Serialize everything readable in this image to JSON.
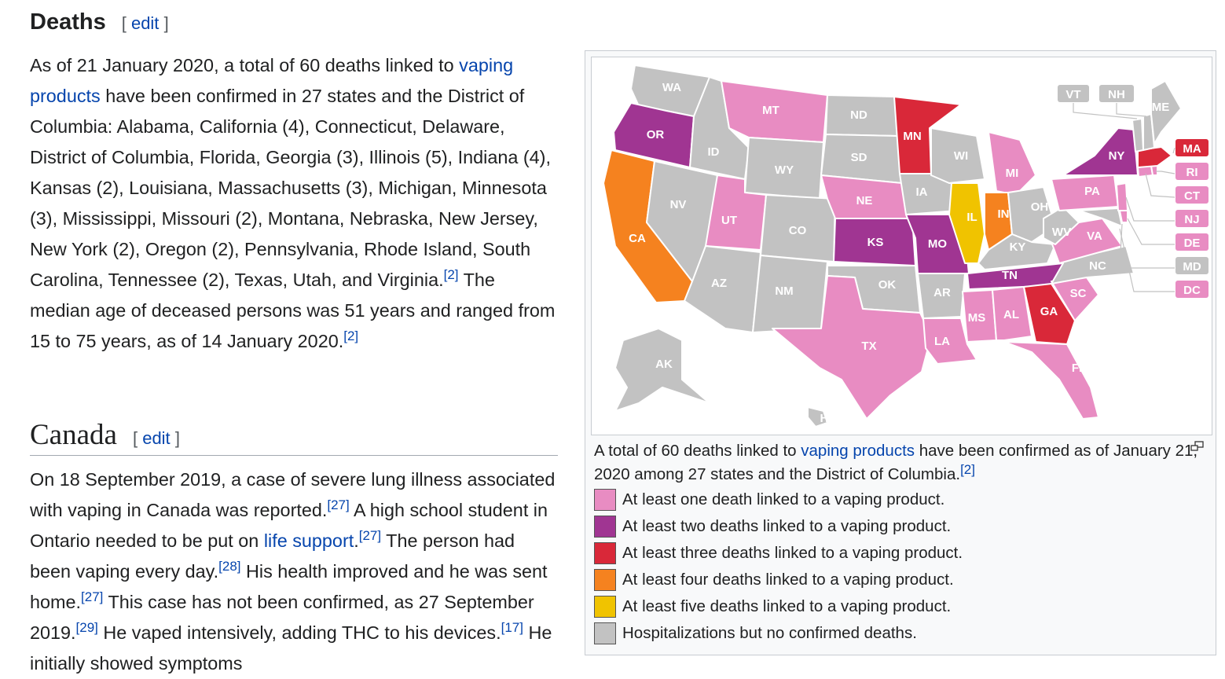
{
  "deaths_section": {
    "heading": "Deaths",
    "edit_bracket_open": "[",
    "edit_label": "edit",
    "edit_bracket_close": "]",
    "para_pre": "As of 21 January 2020, a total of 60 deaths linked to ",
    "para_link": "vaping products",
    "para_mid": " have been confirmed in 27 states and the District of Columbia: Alabama, California (4), Connecticut, Delaware, District of Columbia, Florida, Georgia (3), Illinois (5), Indiana (4), Kansas (2), Louisiana, Massachusetts (3), Michigan, Minnesota (3), Mississippi, Missouri (2), Montana, Nebraska, New Jersey, New York (2), Oregon (2), Pennsylvania, Rhode Island, South Carolina, Tennessee (2), Texas, Utah, and Virginia.",
    "ref1": "[2]",
    "para_post": " The median age of deceased persons was 51 years and ranged from 15 to 75 years, as of 14 January 2020.",
    "ref2": "[2]"
  },
  "canada_section": {
    "heading": "Canada",
    "edit_bracket_open": "[",
    "edit_label": "edit",
    "edit_bracket_close": "]",
    "t1": "On 18 September 2019, a case of severe lung illness associated with vaping in Canada was reported.",
    "r1": "[27]",
    "t2": " A high school student in Ontario needed to be put on ",
    "link": "life support",
    "t3": ".",
    "r2": "[27]",
    "t4": " The person had been vaping every day.",
    "r3": "[28]",
    "t5": " His health improved and he was sent home.",
    "r4": "[27]",
    "t6": " This case has not been confirmed, as 27 September 2019.",
    "r5": "[29]",
    "t7": " He vaped intensively, adding THC to his devices.",
    "r6": "[17]",
    "t8": " He initially showed symptoms"
  },
  "figure": {
    "caption_pre": "A total of 60 deaths linked to ",
    "caption_link": "vaping products",
    "caption_post": " have been confirmed as of January 21, 2020 among 27 states and the District of Columbia.",
    "caption_ref": "[2]",
    "legend": [
      {
        "color": "#e88cc2",
        "label": "At least one death linked to a vaping product."
      },
      {
        "color": "#a03592",
        "label": "At least two deaths linked to a vaping product."
      },
      {
        "color": "#d92839",
        "label": "At least three deaths linked to a vaping product."
      },
      {
        "color": "#f5821f",
        "label": "At least four deaths linked to a vaping product."
      },
      {
        "color": "#f0c300",
        "label": "At least five deaths linked to a vaping product."
      },
      {
        "color": "#c2c2c2",
        "label": "Hospitalizations but no confirmed deaths."
      }
    ],
    "map_labels": {
      "WA": "WA",
      "OR": "OR",
      "CA": "CA",
      "NV": "NV",
      "ID": "ID",
      "MT": "MT",
      "WY": "WY",
      "UT": "UT",
      "AZ": "AZ",
      "CO": "CO",
      "NM": "NM",
      "ND": "ND",
      "SD": "SD",
      "NE": "NE",
      "KS": "KS",
      "OK": "OK",
      "TX": "TX",
      "MN": "MN",
      "IA": "IA",
      "MO": "MO",
      "AR": "AR",
      "LA": "LA",
      "WI": "WI",
      "IL": "IL",
      "MI": "MI",
      "IN": "IN",
      "OH": "OH",
      "KY": "KY",
      "TN": "TN",
      "MS": "MS",
      "AL": "AL",
      "GA": "GA",
      "FL": "FL",
      "SC": "SC",
      "NC": "NC",
      "VA": "VA",
      "WV": "WV",
      "PA": "PA",
      "NY": "NY",
      "ME": "ME",
      "AK": "AK",
      "HI": "HI",
      "VT": "VT",
      "NH": "NH",
      "MA": "MA",
      "RI": "RI",
      "CT": "CT",
      "NJ": "NJ",
      "DE": "DE",
      "MD": "MD",
      "DC": "DC"
    }
  }
}
